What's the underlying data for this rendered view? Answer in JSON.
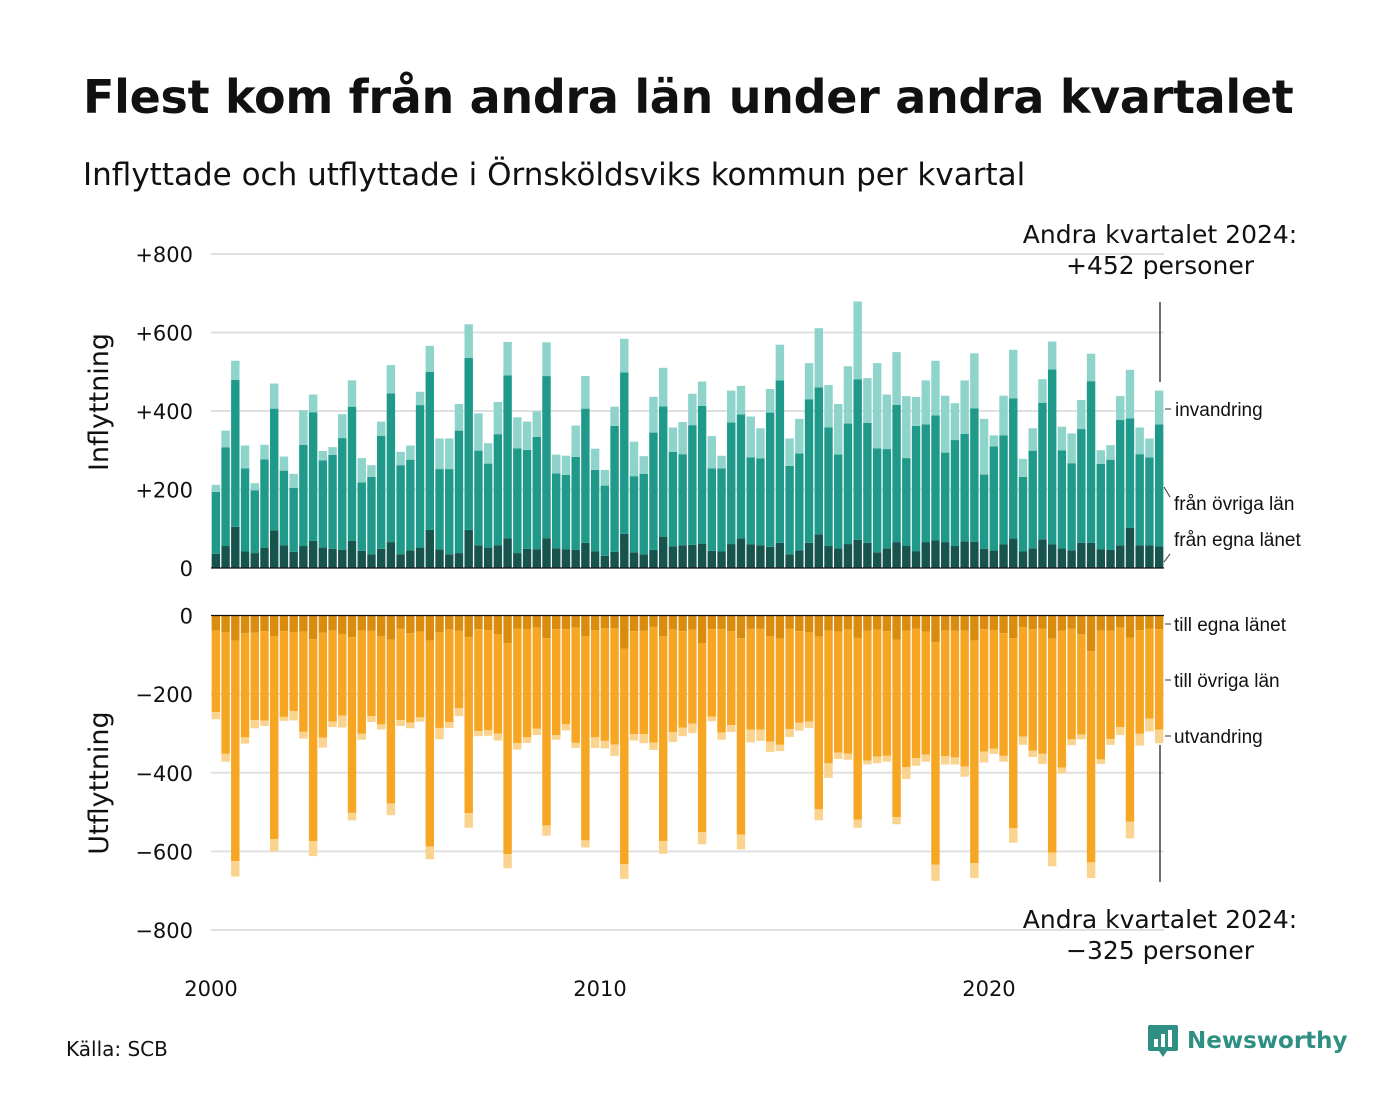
{
  "title": "Flest kom från andra län under andra kvartalet",
  "subtitle": "Inflyttade och utflyttade i Örnsköldsviks kommun per kvartal",
  "source": "Källa: SCB",
  "brand": "Newsworthy",
  "annotation_top": [
    "Andra kvartalet 2024:",
    "+452 personer"
  ],
  "annotation_bottom": [
    "Andra kvartalet 2024:",
    "−325 personer"
  ],
  "colors": {
    "in_egna": "#17544d",
    "in_ovriga": "#1f9a8a",
    "in_invandring": "#8ed4cb",
    "ut_egna": "#d98c0e",
    "ut_ovriga": "#f6a623",
    "ut_utvandring": "#fad38e",
    "grid": "#e0e0e0",
    "brand": "#2e8f82"
  },
  "chart_data": [
    {
      "type": "bar",
      "stacked": true,
      "ylabel": "Inflyttning",
      "ylim": [
        0,
        800
      ],
      "yticks": [
        0,
        200,
        400,
        600,
        800
      ],
      "ytick_labels": [
        "0",
        "+200",
        "+400",
        "+600",
        "+800"
      ],
      "x_start": "2000 Q1",
      "x_end": "2024 Q2",
      "xticks": [
        "2000",
        "2010",
        "2020"
      ],
      "grid": true,
      "series_labels": [
        "från egna länet",
        "från övriga län",
        "invandring"
      ],
      "totals": [
        212,
        350,
        528,
        312,
        216,
        314,
        470,
        284,
        240,
        402,
        442,
        298,
        308,
        392,
        478,
        280,
        262,
        373,
        517,
        296,
        312,
        449,
        566,
        330,
        330,
        418,
        621,
        394,
        318,
        423,
        576,
        384,
        373,
        399,
        575,
        289,
        286,
        363,
        489,
        304,
        250,
        411,
        584,
        322,
        285,
        436,
        510,
        358,
        372,
        444,
        475,
        336,
        286,
        452,
        464,
        386,
        356,
        456,
        569,
        330,
        380,
        522,
        611,
        466,
        418,
        514,
        679,
        484,
        522,
        442,
        550,
        438,
        436,
        478,
        528,
        439,
        420,
        478,
        547,
        380,
        338,
        439,
        556,
        278,
        356,
        481,
        577,
        360,
        343,
        428,
        546,
        300,
        313,
        438,
        505,
        358,
        330,
        452
      ],
      "egna": [
        36,
        56,
        105,
        42,
        38,
        52,
        96,
        58,
        41,
        56,
        69,
        52,
        49,
        46,
        69,
        44,
        35,
        49,
        66,
        35,
        45,
        52,
        97,
        47,
        35,
        38,
        97,
        58,
        52,
        58,
        76,
        38,
        49,
        48,
        76,
        50,
        48,
        46,
        64,
        42,
        31,
        41,
        87,
        40,
        35,
        46,
        79,
        55,
        58,
        59,
        62,
        44,
        42,
        61,
        75,
        60,
        58,
        54,
        64,
        35,
        45,
        64,
        86,
        56,
        50,
        61,
        72,
        64,
        40,
        50,
        66,
        56,
        43,
        66,
        70,
        66,
        56,
        68,
        67,
        49,
        45,
        60,
        75,
        42,
        50,
        73,
        60,
        50,
        45,
        64,
        64,
        48,
        46,
        58,
        102,
        58,
        58,
        55
      ],
      "invandring": [
        18,
        43,
        49,
        58,
        18,
        37,
        64,
        36,
        36,
        88,
        45,
        24,
        20,
        61,
        67,
        62,
        30,
        36,
        72,
        34,
        36,
        34,
        66,
        78,
        78,
        68,
        86,
        95,
        52,
        82,
        85,
        79,
        72,
        65,
        86,
        48,
        49,
        80,
        83,
        54,
        40,
        49,
        86,
        88,
        45,
        91,
        98,
        62,
        82,
        80,
        62,
        82,
        32,
        81,
        73,
        104,
        77,
        60,
        91,
        70,
        88,
        92,
        151,
        108,
        129,
        146,
        198,
        114,
        217,
        139,
        134,
        158,
        74,
        112,
        139,
        145,
        94,
        136,
        140,
        142,
        28,
        101,
        124,
        46,
        57,
        60,
        71,
        60,
        76,
        74,
        70,
        35,
        37,
        61,
        124,
        68,
        48,
        86
      ],
      "ovriga": [
        158,
        251,
        374,
        212,
        160,
        225,
        310,
        190,
        163,
        258,
        328,
        222,
        239,
        285,
        342,
        174,
        197,
        288,
        379,
        227,
        231,
        363,
        403,
        205,
        217,
        312,
        438,
        241,
        214,
        283,
        415,
        267,
        252,
        286,
        413,
        191,
        189,
        237,
        342,
        208,
        179,
        321,
        411,
        194,
        205,
        299,
        333,
        241,
        232,
        305,
        351,
        210,
        212,
        310,
        316,
        222,
        221,
        342,
        414,
        225,
        247,
        366,
        374,
        302,
        239,
        307,
        409,
        306,
        265,
        253,
        350,
        224,
        319,
        300,
        319,
        228,
        270,
        274,
        340,
        189,
        265,
        278,
        357,
        190,
        249,
        348,
        446,
        250,
        222,
        290,
        412,
        217,
        230,
        319,
        279,
        232,
        224,
        311
      ]
    },
    {
      "type": "bar",
      "stacked": true,
      "ylabel": "Utflyttning",
      "ylim": [
        -800,
        0
      ],
      "yticks": [
        0,
        -200,
        -400,
        -600,
        -800
      ],
      "ytick_labels": [
        "0",
        "−200",
        "−400",
        "−600",
        "−800"
      ],
      "x_start": "2000 Q1",
      "x_end": "2024 Q2",
      "xticks": [
        "2000",
        "2010",
        "2020"
      ],
      "grid": true,
      "series_labels": [
        "till egna länet",
        "till övriga län",
        "utvandring"
      ],
      "totals": [
        -264,
        -372,
        -664,
        -326,
        -287,
        -281,
        -600,
        -268,
        -267,
        -313,
        -612,
        -336,
        -284,
        -285,
        -521,
        -316,
        -271,
        -290,
        -508,
        -281,
        -287,
        -270,
        -620,
        -315,
        -286,
        -256,
        -540,
        -307,
        -306,
        -318,
        -643,
        -341,
        -324,
        -304,
        -560,
        -316,
        -292,
        -337,
        -590,
        -337,
        -338,
        -357,
        -670,
        -318,
        -325,
        -342,
        -606,
        -322,
        -307,
        -299,
        -582,
        -269,
        -316,
        -296,
        -595,
        -323,
        -319,
        -347,
        -345,
        -309,
        -293,
        -286,
        -521,
        -413,
        -365,
        -367,
        -540,
        -379,
        -376,
        -372,
        -531,
        -416,
        -382,
        -372,
        -675,
        -379,
        -379,
        -410,
        -668,
        -374,
        -352,
        -372,
        -578,
        -329,
        -360,
        -378,
        -638,
        -402,
        -330,
        -315,
        -668,
        -378,
        -329,
        -304,
        -567,
        -331,
        -295,
        -325
      ],
      "egna": [
        -38,
        -43,
        -64,
        -45,
        -44,
        -40,
        -52,
        -40,
        -43,
        -41,
        -60,
        -44,
        -38,
        -47,
        -55,
        -38,
        -39,
        -52,
        -61,
        -34,
        -45,
        -41,
        -64,
        -43,
        -36,
        -39,
        -55,
        -35,
        -37,
        -48,
        -70,
        -34,
        -36,
        -31,
        -58,
        -35,
        -35,
        -31,
        -53,
        -37,
        -32,
        -32,
        -84,
        -40,
        -39,
        -29,
        -53,
        -36,
        -40,
        -36,
        -70,
        -35,
        -35,
        -40,
        -58,
        -34,
        -34,
        -52,
        -59,
        -34,
        -40,
        -42,
        -54,
        -38,
        -41,
        -36,
        -57,
        -39,
        -36,
        -40,
        -62,
        -39,
        -34,
        -41,
        -68,
        -38,
        -39,
        -38,
        -64,
        -35,
        -37,
        -45,
        -58,
        -30,
        -35,
        -33,
        -59,
        -39,
        -34,
        -48,
        -91,
        -38,
        -39,
        -31,
        -56,
        -37,
        -33,
        -35
      ],
      "utvandring": [
        -18,
        -20,
        -39,
        -16,
        -21,
        -14,
        -31,
        -10,
        -24,
        -17,
        -38,
        -25,
        -14,
        -30,
        -19,
        -15,
        -15,
        -13,
        -30,
        -15,
        -15,
        -11,
        -32,
        -29,
        -15,
        -20,
        -37,
        -13,
        -14,
        -18,
        -36,
        -16,
        -14,
        -16,
        -26,
        -12,
        -16,
        -13,
        -18,
        -27,
        -19,
        -29,
        -37,
        -16,
        -23,
        -19,
        -32,
        -25,
        -22,
        -24,
        -31,
        -12,
        -18,
        -17,
        -38,
        -33,
        -29,
        -26,
        -16,
        -20,
        -20,
        -16,
        -28,
        -37,
        -16,
        -16,
        -21,
        -10,
        -17,
        -15,
        -18,
        -30,
        -19,
        -18,
        -41,
        -21,
        -18,
        -26,
        -38,
        -28,
        -13,
        -15,
        -37,
        -21,
        -16,
        -26,
        -35,
        -15,
        -15,
        -12,
        -40,
        -12,
        -15,
        -20,
        -43,
        -30,
        -33,
        -35
      ],
      "ovriga": [
        -208,
        -309,
        -561,
        -265,
        -222,
        -227,
        -517,
        -218,
        -200,
        -255,
        -514,
        -267,
        -232,
        -208,
        -447,
        -263,
        -217,
        -225,
        -417,
        -232,
        -227,
        -218,
        -524,
        -243,
        -235,
        -197,
        -448,
        -259,
        -255,
        -252,
        -537,
        -291,
        -274,
        -257,
        -476,
        -269,
        -241,
        -293,
        -519,
        -273,
        -287,
        -296,
        -549,
        -262,
        -263,
        -294,
        -521,
        -261,
        -245,
        -239,
        -481,
        -222,
        -263,
        -239,
        -499,
        -256,
        -256,
        -269,
        -270,
        -255,
        -233,
        -228,
        -439,
        -338,
        -308,
        -315,
        -462,
        -330,
        -323,
        -317,
        -451,
        -347,
        -329,
        -313,
        -566,
        -320,
        -322,
        -346,
        -566,
        -311,
        -302,
        -312,
        -483,
        -278,
        -309,
        -319,
        -544,
        -348,
        -281,
        -255,
        -537,
        -328,
        -275,
        -253,
        -468,
        -264,
        -229,
        -255
      ]
    }
  ]
}
